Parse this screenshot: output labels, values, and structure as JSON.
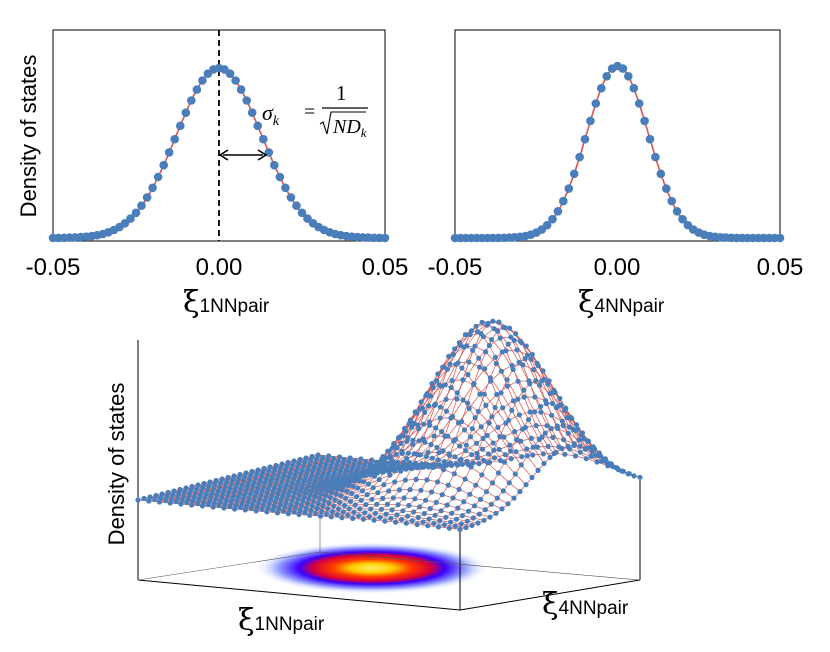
{
  "chart_data": [
    {
      "type": "scatter",
      "ylabel": "Density of states",
      "xlabel_symbol": "ξ",
      "xlabel_subscript": "1NNpair",
      "xlim": [
        -0.05,
        0.05
      ],
      "x_ticks": [
        "-0.05",
        "0.00",
        "0.05"
      ],
      "series": [
        {
          "kind": "points",
          "color": "#4a7ebb",
          "mean": 0.0,
          "sigma": 0.0128,
          "n_points": 61
        },
        {
          "kind": "fit-line",
          "color": "#d9534f",
          "mean": 0.0,
          "sigma": 0.0128
        }
      ],
      "annotation": {
        "lhs": "σ",
        "lhs_sub": "k",
        "numerator": "1",
        "denominator": "ND",
        "denominator_sub": "k"
      }
    },
    {
      "type": "scatter",
      "xlabel_symbol": "ξ",
      "xlabel_subscript": "4NNpair",
      "xlim": [
        -0.05,
        0.05
      ],
      "x_ticks": [
        "-0.05",
        "0.00",
        "0.05"
      ],
      "series": [
        {
          "kind": "points",
          "color": "#4a7ebb",
          "mean": 0.0,
          "sigma": 0.0095,
          "n_points": 61
        },
        {
          "kind": "fit-line",
          "color": "#d9534f",
          "mean": 0.0,
          "sigma": 0.0095
        }
      ]
    },
    {
      "type": "surface-3d",
      "zlabel": "Density of states",
      "xlabel_symbol": "ξ",
      "xlabel_subscript": "1NNpair",
      "ylabel_symbol": "ξ",
      "ylabel_subscript": "4NNpair",
      "projection": "heatmap",
      "colors": {
        "points": "#4a7ebb",
        "mesh": "#d9534f"
      }
    }
  ]
}
